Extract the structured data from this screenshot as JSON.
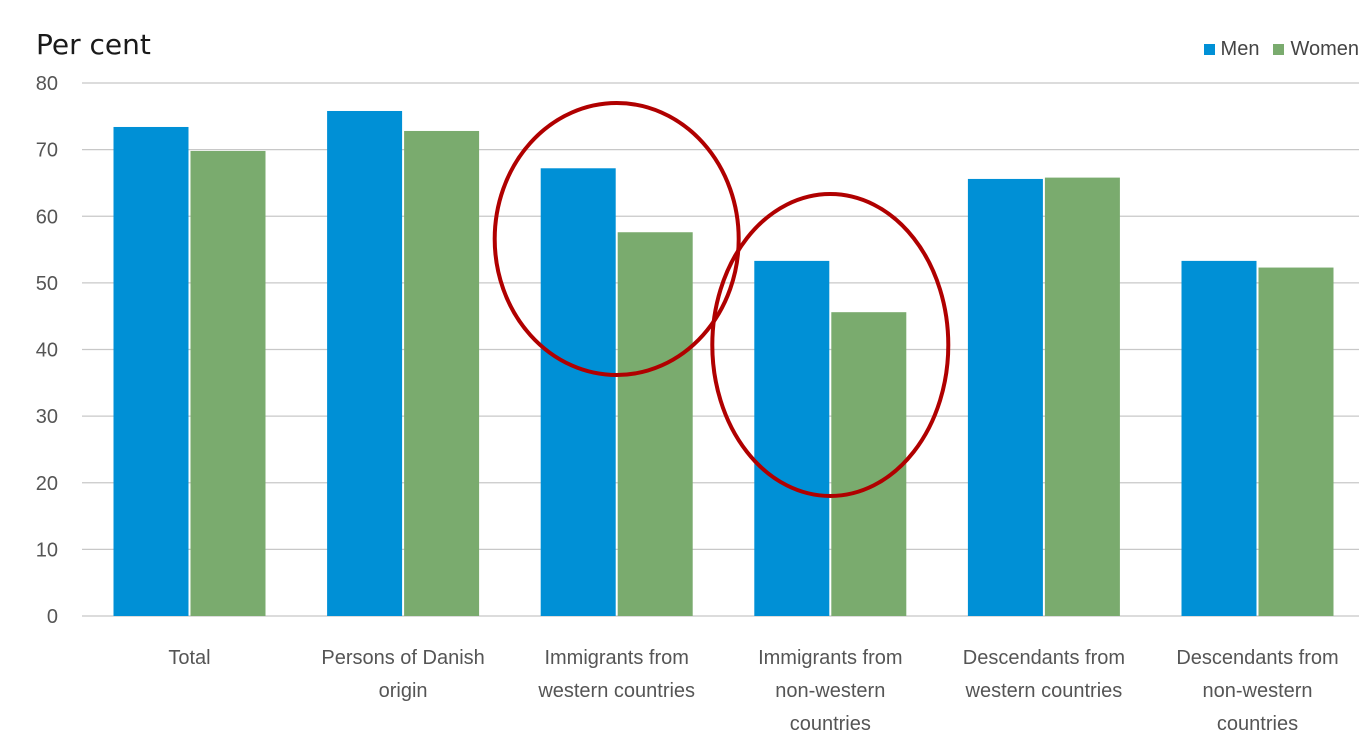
{
  "chart_data": {
    "type": "bar",
    "title": "Per cent",
    "xlabel": "",
    "ylabel": "",
    "ylim": [
      0,
      80
    ],
    "yticks": [
      0,
      10,
      20,
      30,
      40,
      50,
      60,
      70,
      80
    ],
    "grid": true,
    "legend_position": "top-right",
    "categories": [
      [
        "Total"
      ],
      [
        "Persons of Danish",
        "origin"
      ],
      [
        "Immigrants from",
        "western countries"
      ],
      [
        "Immigrants from",
        "non-western",
        "countries"
      ],
      [
        "Descendants from",
        "western countries"
      ],
      [
        "Descendants from",
        "non-western",
        "countries"
      ]
    ],
    "series": [
      {
        "name": "Men",
        "color": "#0090d6",
        "values": [
          73.4,
          75.8,
          67.2,
          53.3,
          65.6,
          53.3
        ]
      },
      {
        "name": "Women",
        "color": "#7aab6e",
        "values": [
          69.8,
          72.8,
          57.6,
          45.6,
          65.8,
          52.3
        ]
      }
    ],
    "annotations": [
      {
        "type": "ellipse",
        "around_category": 2,
        "color": "#b00000"
      },
      {
        "type": "ellipse",
        "around_category": 3,
        "color": "#b00000"
      }
    ]
  }
}
